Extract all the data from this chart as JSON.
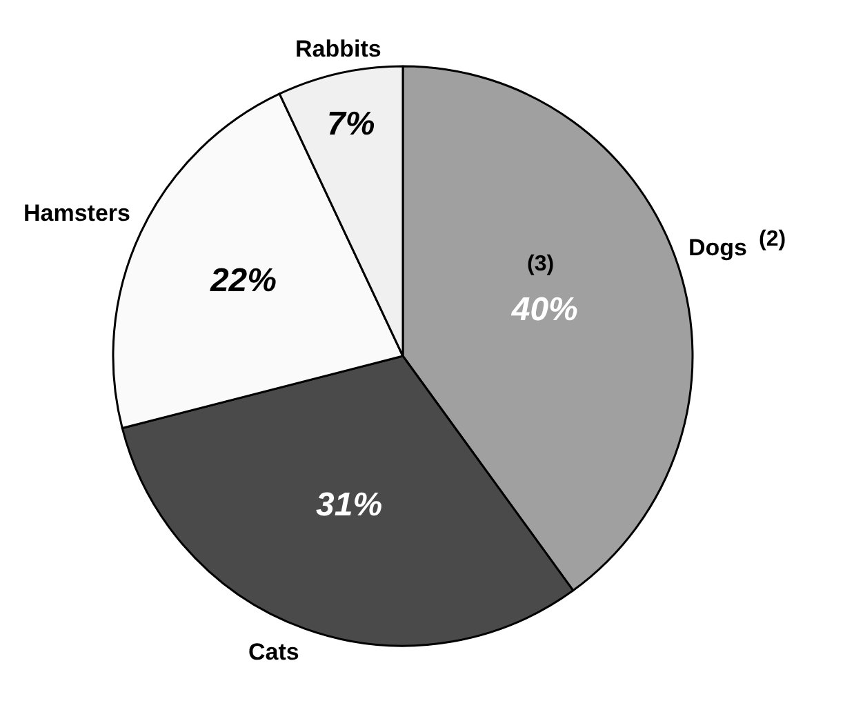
{
  "chart_data": {
    "type": "pie",
    "categories": [
      "Dogs",
      "Cats",
      "Hamsters",
      "Rabbits"
    ],
    "values": [
      40,
      31,
      22,
      7
    ],
    "value_labels": [
      "40%",
      "31%",
      "22%",
      "7%"
    ],
    "colors": [
      "#a0a0a0",
      "#4a4a4a",
      "#fafafa",
      "#f0f0f0"
    ],
    "annotations": [
      "(2)",
      "(3)"
    ],
    "legend": false
  }
}
